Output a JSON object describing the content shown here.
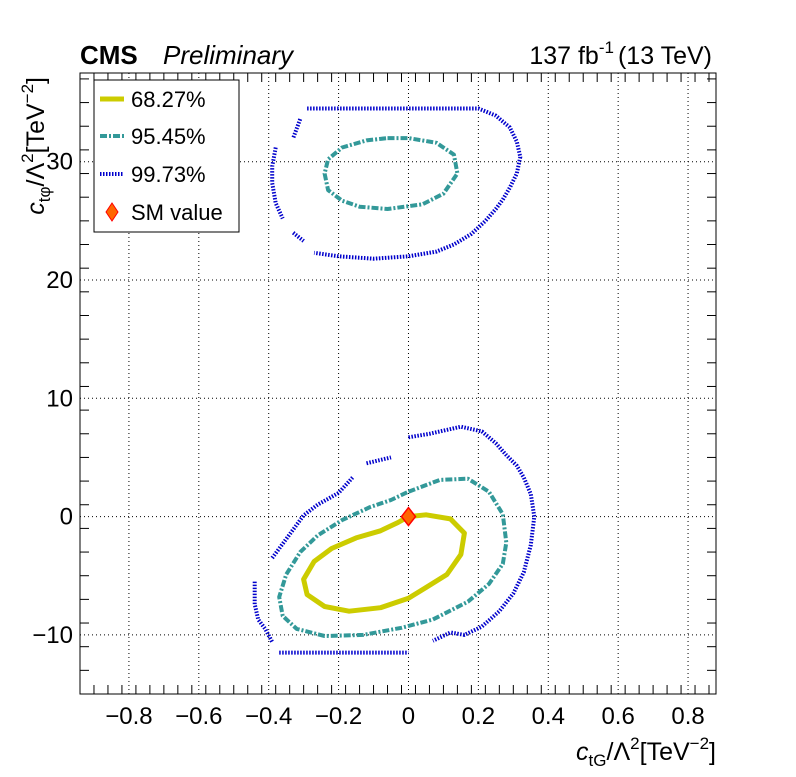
{
  "header": {
    "experiment": "CMS",
    "status": "Preliminary",
    "lumi": "137 fb",
    "lumi_exp": "-1",
    "energy": "(13 TeV)"
  },
  "chart_data": {
    "type": "scatter",
    "title": "",
    "xlabel": {
      "base": "c",
      "sub": "tG",
      "rest": "/Λ",
      "sup": "2",
      "unit": "[TeV",
      "unit_sup": "−2",
      "close": "]"
    },
    "ylabel": {
      "base": "c",
      "sub": "tφ",
      "rest": "/Λ",
      "sup": "2",
      "unit": "[TeV",
      "unit_sup": "−2",
      "close": "]"
    },
    "xlim": [
      -0.94,
      0.88
    ],
    "ylim": [
      -15,
      37.5
    ],
    "x_ticks": [
      -0.8,
      -0.6,
      -0.4,
      -0.2,
      0,
      0.2,
      0.4,
      0.6,
      0.8
    ],
    "x_tick_labels": [
      "−0.8",
      "−0.6",
      "−0.4",
      "−0.2",
      "0",
      "0.2",
      "0.4",
      "0.6",
      "0.8"
    ],
    "y_ticks": [
      -10,
      0,
      10,
      20,
      30
    ],
    "y_tick_labels": [
      "−10",
      "0",
      "10",
      "20",
      "30"
    ],
    "grid": true,
    "legend_position": "top-left",
    "series": [
      {
        "name": "68.27%",
        "color": "#cccc00",
        "style": "solid",
        "contours": [
          [
            [
              0.0,
              0.0
            ],
            [
              0.05,
              0.15
            ],
            [
              0.12,
              -0.2
            ],
            [
              0.16,
              -1.4
            ],
            [
              0.15,
              -3.2
            ],
            [
              0.11,
              -4.9
            ],
            [
              0.05,
              -6.0
            ],
            [
              0.0,
              -6.9
            ],
            [
              -0.08,
              -7.7
            ],
            [
              -0.17,
              -8.0
            ],
            [
              -0.24,
              -7.6
            ],
            [
              -0.29,
              -6.6
            ],
            [
              -0.3,
              -5.3
            ],
            [
              -0.27,
              -3.8
            ],
            [
              -0.22,
              -2.7
            ],
            [
              -0.15,
              -1.8
            ],
            [
              -0.08,
              -1.2
            ],
            [
              -0.03,
              -0.5
            ],
            [
              0.0,
              0.0
            ]
          ]
        ]
      },
      {
        "name": "95.45%",
        "color": "#339999",
        "style": "dash-dot",
        "contours": [
          [
            [
              0.0,
              2.1
            ],
            [
              0.09,
              3.1
            ],
            [
              0.17,
              3.2
            ],
            [
              0.23,
              2.1
            ],
            [
              0.27,
              0.2
            ],
            [
              0.28,
              -2.2
            ],
            [
              0.27,
              -4.0
            ],
            [
              0.23,
              -5.7
            ],
            [
              0.17,
              -7.2
            ],
            [
              0.07,
              -8.7
            ],
            [
              -0.02,
              -9.4
            ],
            [
              -0.13,
              -10.0
            ],
            [
              -0.24,
              -10.1
            ],
            [
              -0.32,
              -9.5
            ],
            [
              -0.36,
              -8.4
            ],
            [
              -0.37,
              -6.8
            ],
            [
              -0.35,
              -4.9
            ],
            [
              -0.31,
              -3.0
            ],
            [
              -0.26,
              -1.6
            ],
            [
              -0.19,
              -0.3
            ],
            [
              -0.11,
              0.8
            ],
            [
              -0.05,
              1.4
            ],
            [
              0.0,
              2.1
            ]
          ],
          [
            [
              -0.06,
              32.0
            ],
            [
              0.0,
              32.0
            ],
            [
              0.08,
              31.6
            ],
            [
              0.13,
              30.6
            ],
            [
              0.14,
              29.0
            ],
            [
              0.1,
              27.3
            ],
            [
              0.04,
              26.4
            ],
            [
              -0.06,
              26.0
            ],
            [
              -0.14,
              26.2
            ],
            [
              -0.19,
              26.7
            ],
            [
              -0.23,
              27.6
            ],
            [
              -0.24,
              29.0
            ],
            [
              -0.23,
              30.2
            ],
            [
              -0.19,
              31.2
            ],
            [
              -0.12,
              31.8
            ],
            [
              -0.06,
              32.0
            ]
          ]
        ]
      },
      {
        "name": "99.73%",
        "color": "#0000cc",
        "style": "dotted",
        "contours": [
          [
            [
              0.0,
              6.7
            ],
            [
              0.06,
              7.0
            ],
            [
              0.15,
              7.6
            ],
            [
              0.21,
              7.2
            ],
            [
              0.25,
              6.2
            ],
            [
              0.28,
              5.2
            ],
            [
              0.31,
              4.3
            ],
            [
              0.33,
              3.3
            ],
            [
              0.35,
              1.9
            ],
            [
              0.36,
              0.0
            ],
            [
              0.35,
              -2.4
            ],
            [
              0.33,
              -4.7
            ],
            [
              0.3,
              -6.5
            ],
            [
              0.26,
              -8.0
            ],
            [
              0.21,
              -9.3
            ],
            [
              0.16,
              -10.0
            ],
            [
              0.12,
              -9.8
            ],
            [
              0.07,
              -10.5
            ]
          ],
          [
            [
              -0.44,
              -5.5
            ],
            [
              -0.44,
              -7.4
            ],
            [
              -0.43,
              -8.7
            ],
            [
              -0.41,
              -9.5
            ],
            [
              -0.39,
              -10.6
            ]
          ],
          [
            [
              -0.37,
              -11.5
            ],
            [
              -0.2,
              -11.5
            ],
            [
              0.0,
              -11.5
            ]
          ],
          [
            [
              -0.39,
              -3.5
            ],
            [
              -0.34,
              -1.5
            ],
            [
              -0.3,
              0.1
            ],
            [
              -0.26,
              1.0
            ],
            [
              -0.2,
              2.0
            ],
            [
              -0.16,
              3.3
            ]
          ],
          [
            [
              -0.12,
              4.5
            ],
            [
              -0.05,
              5.0
            ]
          ],
          [
            [
              -0.29,
              34.5
            ],
            [
              -0.1,
              34.5
            ],
            [
              0.05,
              34.5
            ],
            [
              0.2,
              34.5
            ],
            [
              0.25,
              33.9
            ],
            [
              0.29,
              32.9
            ],
            [
              0.31,
              31.7
            ],
            [
              0.32,
              30.4
            ],
            [
              0.31,
              29.0
            ],
            [
              0.29,
              27.8
            ],
            [
              0.27,
              26.8
            ],
            [
              0.25,
              26.0
            ],
            [
              0.22,
              25.0
            ],
            [
              0.18,
              23.9
            ],
            [
              0.13,
              23.0
            ],
            [
              0.08,
              22.4
            ],
            [
              0.0,
              22.0
            ],
            [
              -0.1,
              21.8
            ],
            [
              -0.2,
              22.0
            ],
            [
              -0.27,
              22.3
            ]
          ],
          [
            [
              -0.31,
              33.6
            ],
            [
              -0.33,
              32.0
            ]
          ],
          [
            [
              -0.38,
              31.2
            ],
            [
              -0.39,
              29.6
            ],
            [
              -0.39,
              28.2
            ],
            [
              -0.38,
              26.5
            ],
            [
              -0.36,
              25.2
            ]
          ],
          [
            [
              -0.33,
              24.0
            ],
            [
              -0.3,
              23.3
            ]
          ]
        ]
      }
    ],
    "markers": [
      {
        "name": "SM value",
        "x": 0,
        "y": 0,
        "fill": "#ff6600",
        "stroke": "#ff0000",
        "shape": "diamond"
      }
    ]
  }
}
